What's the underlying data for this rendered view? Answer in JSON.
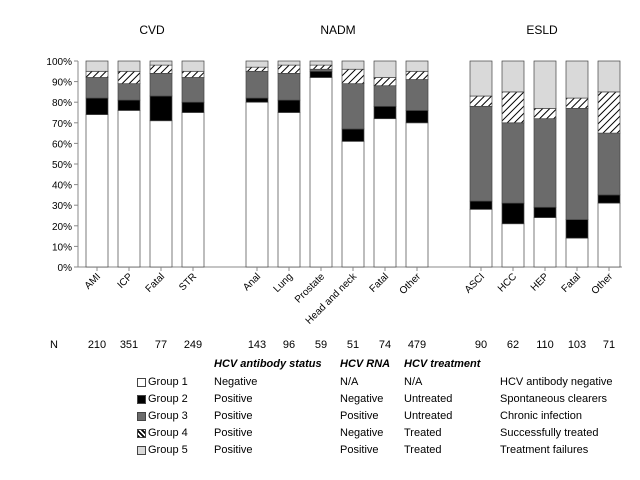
{
  "chart_data": {
    "type": "bar",
    "stacked": true,
    "y_axis": {
      "ylim": [
        0,
        100
      ],
      "ticks": [
        "0%",
        "10%",
        "20%",
        "30%",
        "40%",
        "50%",
        "60%",
        "70%",
        "80%",
        "90%",
        "100%"
      ]
    },
    "grid": false,
    "n_label": "N",
    "groups": [
      {
        "title": "CVD",
        "categories": [
          "AMI",
          "ICP",
          "Fatal",
          "STR"
        ],
        "n": [
          "210",
          "351",
          "77",
          "249"
        ],
        "series": [
          {
            "name": "Group 1",
            "values": [
              74,
              76,
              71,
              75
            ]
          },
          {
            "name": "Group 2",
            "values": [
              8,
              5,
              12,
              5
            ]
          },
          {
            "name": "Group 3",
            "values": [
              10,
              8,
              11,
              12
            ]
          },
          {
            "name": "Group 4",
            "values": [
              3,
              6,
              4,
              3
            ]
          },
          {
            "name": "Group 5",
            "values": [
              5,
              5,
              2,
              5
            ]
          }
        ]
      },
      {
        "title": "NADM",
        "categories": [
          "Anal",
          "Lung",
          "Prostate",
          "Head and neck",
          "Fatal",
          "Other"
        ],
        "n": [
          "143",
          "96",
          "59",
          "51",
          "74",
          "479"
        ],
        "series": [
          {
            "name": "Group 1",
            "values": [
              80,
              75,
              92,
              61,
              72,
              70
            ]
          },
          {
            "name": "Group 2",
            "values": [
              2,
              6,
              3,
              6,
              6,
              6
            ]
          },
          {
            "name": "Group 3",
            "values": [
              13,
              13,
              1,
              22,
              10,
              15
            ]
          },
          {
            "name": "Group 4",
            "values": [
              2,
              4,
              2,
              7,
              4,
              4
            ]
          },
          {
            "name": "Group 5",
            "values": [
              3,
              2,
              2,
              4,
              8,
              5
            ]
          }
        ]
      },
      {
        "title": "ESLD",
        "categories": [
          "ASCI",
          "HCC",
          "HEP",
          "Fatal",
          "Other"
        ],
        "n": [
          "90",
          "62",
          "110",
          "103",
          "71"
        ],
        "series": [
          {
            "name": "Group 1",
            "values": [
              28,
              21,
              24,
              14,
              31
            ]
          },
          {
            "name": "Group 2",
            "values": [
              4,
              10,
              5,
              9,
              4
            ]
          },
          {
            "name": "Group 3",
            "values": [
              46,
              39,
              43,
              54,
              30
            ]
          },
          {
            "name": "Group 4",
            "values": [
              5,
              15,
              5,
              5,
              20
            ]
          },
          {
            "name": "Group 5",
            "values": [
              17,
              15,
              23,
              18,
              15
            ]
          }
        ]
      }
    ],
    "series_styles": [
      {
        "name": "Group 1",
        "fill": "#ffffff"
      },
      {
        "name": "Group 2",
        "fill": "#000000"
      },
      {
        "name": "Group 3",
        "fill": "#6b6b6b"
      },
      {
        "name": "Group 4",
        "fill": "hatch"
      },
      {
        "name": "Group 5",
        "fill": "#d9d9d9"
      }
    ]
  },
  "legend_table": {
    "headers": [
      "HCV antibody status",
      "HCV RNA",
      "HCV treatment"
    ],
    "rows": [
      {
        "group": "Group 1",
        "antibody": "Negative",
        "rna": "N/A",
        "treatment": "N/A",
        "description": "HCV antibody negative"
      },
      {
        "group": "Group 2",
        "antibody": "Positive",
        "rna": "Negative",
        "treatment": "Untreated",
        "description": "Spontaneous clearers"
      },
      {
        "group": "Group 3",
        "antibody": "Positive",
        "rna": "Positive",
        "treatment": "Untreated",
        "description": "Chronic infection"
      },
      {
        "group": "Group 4",
        "antibody": "Positive",
        "rna": "Negative",
        "treatment": "Treated",
        "description": "Successfully treated"
      },
      {
        "group": "Group 5",
        "antibody": "Positive",
        "rna": "Positive",
        "treatment": "Treated",
        "description": "Treatment failures"
      }
    ]
  }
}
